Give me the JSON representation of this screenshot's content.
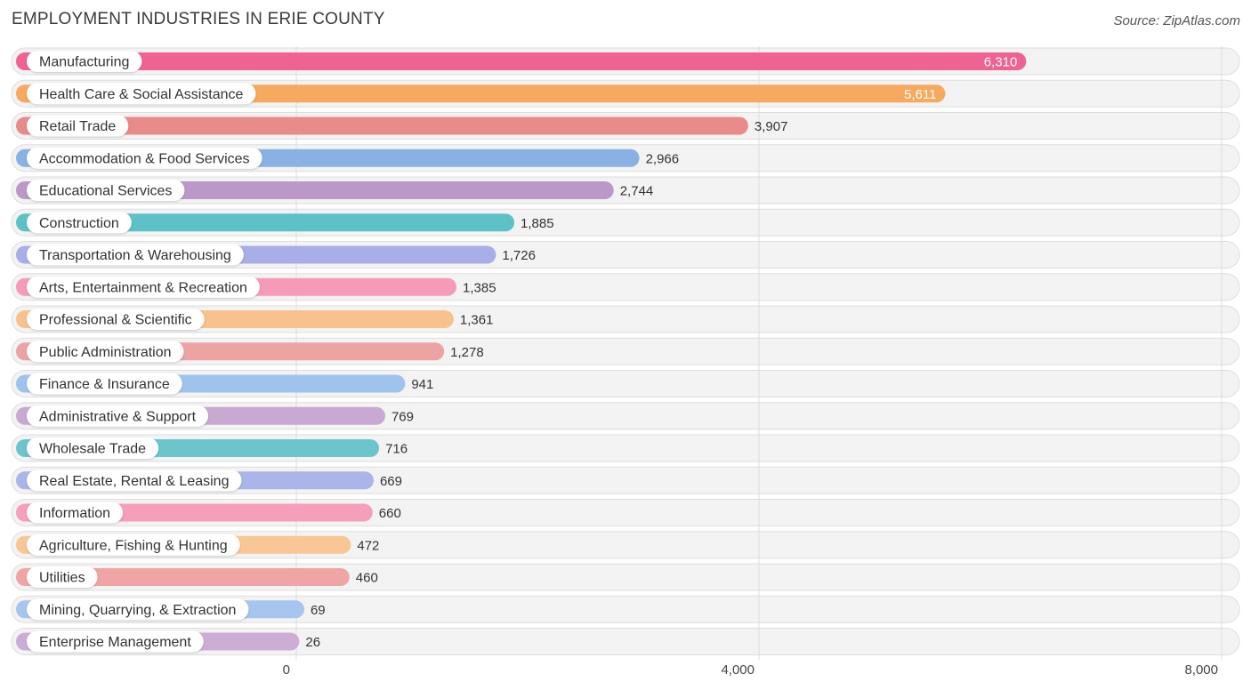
{
  "header": {
    "title": "EMPLOYMENT INDUSTRIES IN ERIE COUNTY",
    "source": "Source: ZipAtlas.com"
  },
  "chart_data": {
    "type": "bar",
    "orientation": "horizontal",
    "title": "EMPLOYMENT INDUSTRIES IN ERIE COUNTY",
    "xlabel": "",
    "ylabel": "",
    "xlim": [
      0,
      8000
    ],
    "x_ticks": [
      0,
      4000,
      8000
    ],
    "x_tick_labels": [
      "0",
      "4,000",
      "8,000"
    ],
    "grid": true,
    "categories": [
      "Manufacturing",
      "Health Care & Social Assistance",
      "Retail Trade",
      "Accommodation & Food Services",
      "Educational Services",
      "Construction",
      "Transportation & Warehousing",
      "Arts, Entertainment & Recreation",
      "Professional & Scientific",
      "Public Administration",
      "Finance & Insurance",
      "Administrative & Support",
      "Wholesale Trade",
      "Real Estate, Rental & Leasing",
      "Information",
      "Agriculture, Fishing & Hunting",
      "Utilities",
      "Mining, Quarrying, & Extraction",
      "Enterprise Management"
    ],
    "values": [
      6310,
      5611,
      3907,
      2966,
      2744,
      1885,
      1726,
      1385,
      1361,
      1278,
      941,
      769,
      716,
      669,
      660,
      472,
      460,
      69,
      26
    ],
    "value_labels": [
      "6,310",
      "5,611",
      "3,907",
      "2,966",
      "2,744",
      "1,885",
      "1,726",
      "1,385",
      "1,361",
      "1,278",
      "941",
      "769",
      "716",
      "669",
      "660",
      "472",
      "460",
      "69",
      "26"
    ],
    "colors": [
      "#f06292",
      "#f6a95f",
      "#e98b8b",
      "#89b1e4",
      "#bb98c8",
      "#5cc2c8",
      "#a8aee8",
      "#f59bb8",
      "#f8c28f",
      "#eda3a3",
      "#9ec3ec",
      "#c9a8d2",
      "#6cc5cb",
      "#aab6ea",
      "#f59fba",
      "#f8c795",
      "#f0a5a5",
      "#a5c6ee",
      "#ccadd6"
    ]
  }
}
